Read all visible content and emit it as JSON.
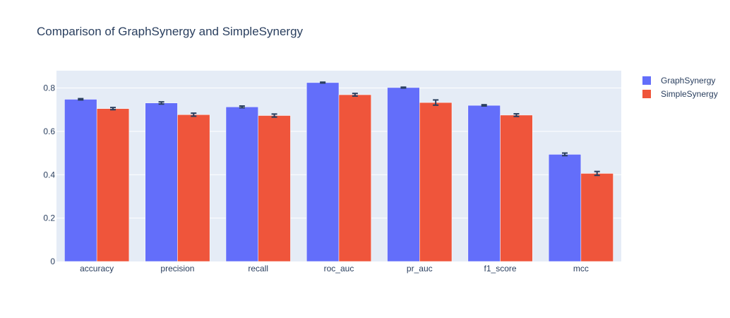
{
  "chart_data": {
    "type": "bar",
    "title": "Comparison of GraphSynergy and SimpleSynergy",
    "xlabel": "",
    "ylabel": "",
    "categories": [
      "accuracy",
      "precision",
      "recall",
      "roc_auc",
      "pr_auc",
      "f1_score",
      "mcc"
    ],
    "ylim": [
      0,
      0.88
    ],
    "yticks": [
      0,
      0.2,
      0.4,
      0.6,
      0.8
    ],
    "grid": true,
    "legend_position": "top-right",
    "series": [
      {
        "name": "GraphSynergy",
        "color": "#636efa",
        "values": [
          0.748,
          0.731,
          0.713,
          0.825,
          0.802,
          0.72,
          0.494
        ],
        "errors": [
          0.003,
          0.005,
          0.004,
          0.002,
          0.002,
          0.003,
          0.006
        ]
      },
      {
        "name": "SimpleSynergy",
        "color": "#ef553b",
        "values": [
          0.705,
          0.677,
          0.673,
          0.769,
          0.733,
          0.675,
          0.406
        ],
        "errors": [
          0.005,
          0.007,
          0.007,
          0.006,
          0.012,
          0.006,
          0.009
        ]
      }
    ]
  }
}
